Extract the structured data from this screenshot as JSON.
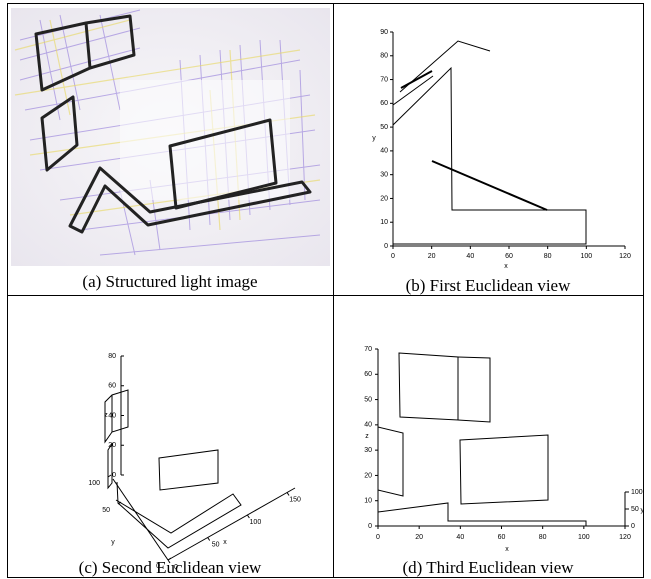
{
  "panels": [
    {
      "caption": "(a) Structured light image"
    },
    {
      "caption": "(b) First Euclidean view",
      "xticks": [
        0,
        20,
        40,
        60,
        80,
        100,
        120
      ],
      "yticks": [
        0,
        10,
        20,
        30,
        40,
        50,
        60,
        70,
        80,
        90
      ],
      "xlabel": "x",
      "ylabel": "y"
    },
    {
      "caption": "(c) Second Euclidean view",
      "zticks": [
        0,
        20,
        40,
        60,
        80
      ],
      "yticks": [
        100,
        50,
        0
      ],
      "xticks": [
        0,
        50,
        100,
        150
      ],
      "xlabel": "x",
      "ylabel": "y",
      "zlabel": "z"
    },
    {
      "caption": "(d) Third Euclidean view",
      "xticks": [
        0,
        20,
        40,
        60,
        80,
        100,
        120
      ],
      "zticks": [
        0,
        10,
        20,
        30,
        40,
        50,
        60,
        70
      ],
      "yticks": [
        0,
        50,
        100
      ],
      "xlabel": "x",
      "zlabel": "z",
      "ylabel": "y"
    }
  ]
}
